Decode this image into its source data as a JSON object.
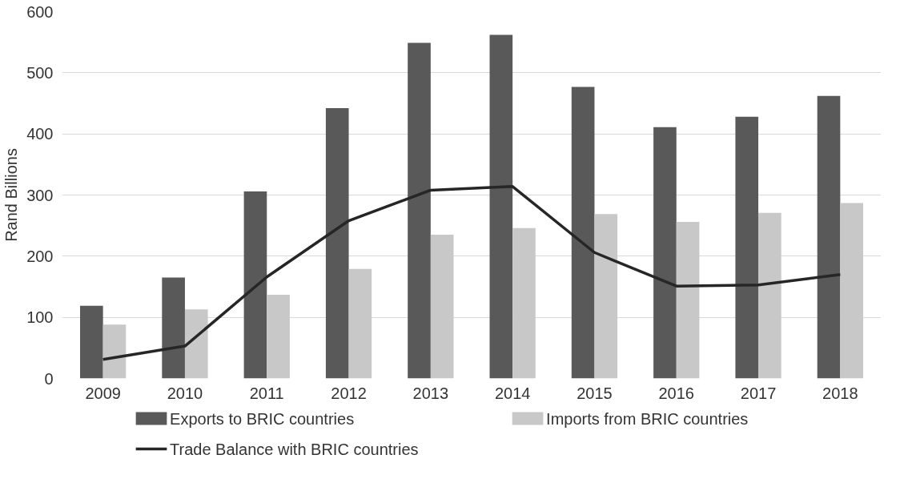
{
  "chart_data": {
    "type": "bar",
    "ylabel": "Rand Billions",
    "categories": [
      "2009",
      "2010",
      "2011",
      "2012",
      "2013",
      "2014",
      "2015",
      "2016",
      "2017",
      "2018"
    ],
    "series": [
      {
        "name": "Exports to BRIC countries",
        "color": "#595959",
        "values": [
          119,
          165,
          306,
          442,
          549,
          562,
          477,
          411,
          428,
          462
        ]
      },
      {
        "name": "Imports from BRIC countries",
        "color": "#c8c8c8",
        "values": [
          88,
          113,
          137,
          179,
          235,
          246,
          269,
          256,
          271,
          287
        ]
      },
      {
        "name": "Trade Balance with BRIC countries",
        "type": "line",
        "color": "#262626",
        "values": [
          31,
          53,
          166,
          258,
          308,
          314,
          206,
          151,
          153,
          170
        ]
      }
    ],
    "ylim": [
      0,
      600
    ],
    "yticks": [
      0,
      100,
      200,
      300,
      400,
      500,
      600
    ],
    "grid": "y",
    "legend": "bottom",
    "marker": "none",
    "line_style": "solid"
  }
}
